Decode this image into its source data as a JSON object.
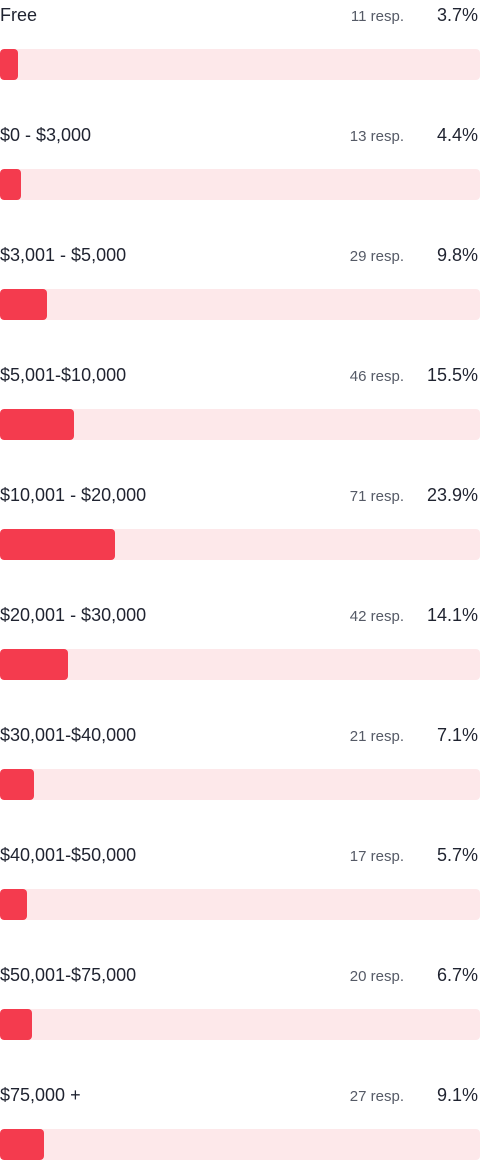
{
  "chart_data": {
    "type": "bar",
    "orientation": "horizontal",
    "categories": [
      "Free",
      "$0 - $3,000",
      "$3,001 - $5,000",
      "$5,001-$10,000",
      "$10,001 - $20,000",
      "$20,001 - $30,000",
      "$30,001-$40,000",
      "$40,001-$50,000",
      "$50,001-$75,000",
      "$75,000 +"
    ],
    "responses": [
      "11 resp.",
      "13 resp.",
      "29 resp.",
      "46 resp.",
      "71 resp.",
      "42 resp.",
      "21 resp.",
      "17 resp.",
      "20 resp.",
      "27 resp."
    ],
    "percent_labels": [
      "3.7%",
      "4.4%",
      "9.8%",
      "15.5%",
      "23.9%",
      "14.1%",
      "7.1%",
      "5.7%",
      "6.7%",
      "9.1%"
    ],
    "values": [
      3.7,
      4.4,
      9.8,
      15.5,
      23.9,
      14.1,
      7.1,
      5.7,
      6.7,
      9.1
    ],
    "xlim": [
      0,
      100
    ],
    "colors": {
      "bar": "#f43b4e",
      "track": "#fde8ea",
      "text": "#1f2330",
      "muted": "#555a66"
    }
  }
}
